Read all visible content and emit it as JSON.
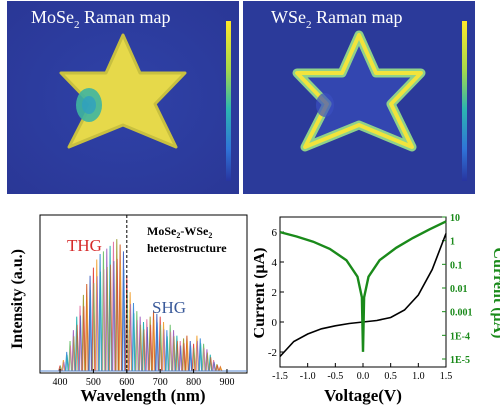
{
  "maps": [
    {
      "title_main": "MoSe",
      "title_sub": "2",
      "title_rest": " Raman map",
      "variant": "filled"
    },
    {
      "title_main": "WSe",
      "title_sub": "2",
      "title_rest": " Raman map",
      "variant": "edge"
    }
  ],
  "colors": {
    "map_background": "#2b3a9a",
    "map_fill": "#e6d94a",
    "map_fill_edge": "#f2e43c",
    "map_edge_ring": "#8fd18a",
    "map_inner_wse2": "#3346b0",
    "colorbar_top": "#ffe82a",
    "colorbar_bottom": "#2835a0",
    "thg_label": "#d62a2a",
    "shg_label": "#3a5a9a",
    "iv_black": "#000000",
    "iv_green": "#1a8a1a"
  },
  "chart_data": [
    {
      "type": "line",
      "title": "",
      "xlabel": "Wavelength (nm)",
      "ylabel": "Intensity (a.u.)",
      "xlim": [
        340,
        960
      ],
      "x_ticks": [
        "400",
        "500",
        "600",
        "700",
        "800",
        "900"
      ],
      "annotations": {
        "thg": "THG",
        "shg": "SHG",
        "sample_line1": "MoSe",
        "sample_line1_sub": "2",
        "sample_line1_rest": "-WSe",
        "sample_line1_sub2": "2",
        "sample_line2": "heterostructure"
      },
      "peak_centers_nm": [
        400,
        410,
        420,
        430,
        440,
        450,
        460,
        470,
        480,
        490,
        500,
        510,
        520,
        530,
        540,
        550,
        560,
        570,
        580,
        590,
        600,
        610,
        620,
        630,
        640,
        650,
        660,
        670,
        680,
        690,
        700,
        710,
        720,
        730,
        740,
        750,
        760,
        770,
        780,
        790,
        800,
        810,
        820,
        830,
        840,
        850,
        860,
        870,
        880
      ],
      "peak_heights": [
        0.04,
        0.08,
        0.14,
        0.22,
        0.3,
        0.4,
        0.48,
        0.56,
        0.64,
        0.7,
        0.76,
        0.82,
        0.86,
        0.88,
        0.9,
        0.92,
        0.95,
        0.97,
        0.93,
        0.88,
        0.7,
        0.58,
        0.5,
        0.44,
        0.4,
        0.36,
        0.38,
        0.4,
        0.44,
        0.42,
        0.4,
        0.36,
        0.3,
        0.34,
        0.3,
        0.26,
        0.22,
        0.24,
        0.26,
        0.22,
        0.2,
        0.26,
        0.24,
        0.2,
        0.16,
        0.12,
        0.08,
        0.05,
        0.03
      ],
      "dashed_marker_nm": 600
    },
    {
      "type": "line",
      "title": "",
      "xlabel": "Voltage(V)",
      "ylabel_left": "Current (μA)",
      "ylabel_right": "Current (μA)",
      "xlim": [
        -1.5,
        1.5
      ],
      "ylim_left": [
        -3,
        7
      ],
      "ylim_right_log": [
        -5,
        1
      ],
      "x_ticks": [
        "-1.5",
        "-1.0",
        "-0.5",
        "0.0",
        "0.5",
        "1.0",
        "1.5"
      ],
      "y_left_ticks": [
        "-2",
        "0",
        "2",
        "4",
        "6"
      ],
      "y_right_ticks": [
        "1E-5",
        "1E-4",
        "0.001",
        "0.01",
        "0.1",
        "1",
        "10"
      ],
      "series": [
        {
          "axis": "left",
          "x": [
            -1.5,
            -1.25,
            -1.0,
            -0.75,
            -0.5,
            -0.25,
            0.0,
            0.25,
            0.5,
            0.75,
            1.0,
            1.25,
            1.5
          ],
          "y": [
            -2.3,
            -1.3,
            -0.8,
            -0.45,
            -0.25,
            -0.1,
            0.0,
            0.1,
            0.3,
            0.8,
            1.8,
            3.5,
            5.9
          ]
        },
        {
          "axis": "right",
          "x": [
            -1.5,
            -1.2,
            -0.9,
            -0.6,
            -0.3,
            -0.1,
            -0.02,
            0.0,
            0.02,
            0.1,
            0.3,
            0.6,
            0.9,
            1.2,
            1.5
          ],
          "y": [
            2.3,
            1.5,
            0.9,
            0.45,
            0.15,
            0.03,
            0.004,
            2e-05,
            0.004,
            0.03,
            0.15,
            0.5,
            1.3,
            3.0,
            6.5
          ]
        }
      ]
    }
  ]
}
